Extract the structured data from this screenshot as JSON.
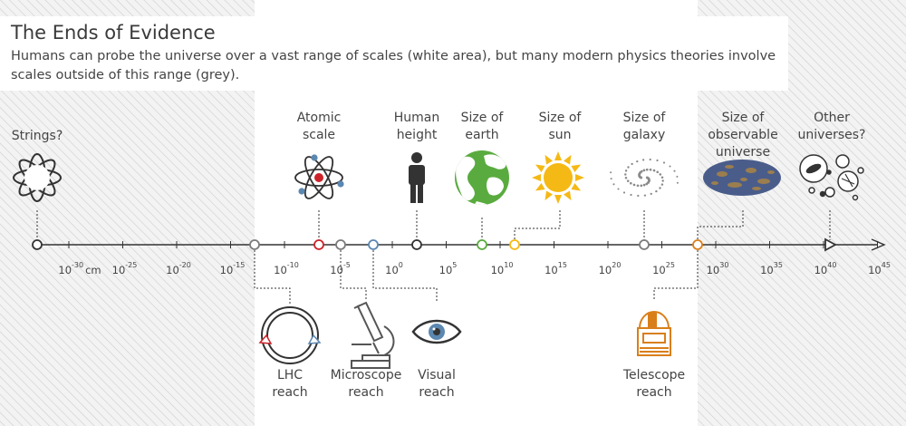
{
  "header": {
    "title": "The Ends of Evidence",
    "subtitle": "Humans can probe the universe over a vast range of scales (white area), but many modern physics theories involve scales outside of this range (grey)."
  },
  "axis": {
    "unit_label": "cm",
    "ticks": [
      {
        "base": "10",
        "exp": "-30"
      },
      {
        "base": "10",
        "exp": "-25"
      },
      {
        "base": "10",
        "exp": "-20"
      },
      {
        "base": "10",
        "exp": "-15"
      },
      {
        "base": "10",
        "exp": "-10"
      },
      {
        "base": "10",
        "exp": "-5"
      },
      {
        "base": "10",
        "exp": "0"
      },
      {
        "base": "10",
        "exp": "5"
      },
      {
        "base": "10",
        "exp": "10"
      },
      {
        "base": "10",
        "exp": "15"
      },
      {
        "base": "10",
        "exp": "20"
      },
      {
        "base": "10",
        "exp": "25"
      },
      {
        "base": "10",
        "exp": "30"
      },
      {
        "base": "10",
        "exp": "35"
      },
      {
        "base": "10",
        "exp": "40"
      },
      {
        "base": "10",
        "exp": "45"
      }
    ]
  },
  "top_items": {
    "strings": "Strings?",
    "atomic": "Atomic\nscale",
    "human": "Human\nheight",
    "earth": "Size of\nearth",
    "sun": "Size of\nsun",
    "galaxy": "Size of\ngalaxy",
    "universe": "Size of\nobservable\nuniverse",
    "other": "Other\nuniverses?"
  },
  "bottom_items": {
    "lhc": "LHC\nreach",
    "microscope": "Microscope\nreach",
    "visual": "Visual\nreach",
    "telescope": "Telescope\nreach"
  },
  "colors": {
    "hatch_bg": "#f2f2f2",
    "hatch_line": "#cfcfcf",
    "axis": "#333333",
    "red": "#cc2229",
    "grey": "#7b7b7b",
    "blue": "#5b87b0",
    "green": "#5aab3f",
    "yellow": "#f5b915",
    "orange": "#d97f1a",
    "galaxy": "#8a8a8a",
    "universe": "#4a5d8a"
  }
}
